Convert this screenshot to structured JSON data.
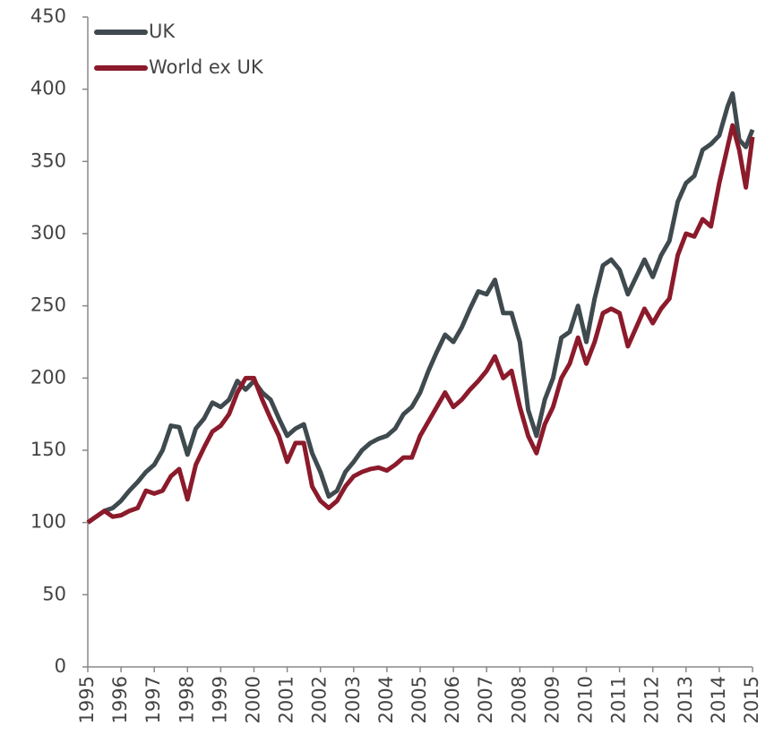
{
  "chart_data": {
    "type": "line",
    "x": [
      1995,
      1995.25,
      1995.5,
      1995.75,
      1996,
      1996.25,
      1996.5,
      1996.75,
      1997,
      1997.25,
      1997.5,
      1997.75,
      1998,
      1998.25,
      1998.5,
      1998.75,
      1999,
      1999.25,
      1999.5,
      1999.75,
      2000,
      2000.25,
      2000.5,
      2000.75,
      2001,
      2001.25,
      2001.5,
      2001.75,
      2002,
      2002.25,
      2002.5,
      2002.75,
      2003,
      2003.25,
      2003.5,
      2003.75,
      2004,
      2004.25,
      2004.5,
      2004.75,
      2005,
      2005.25,
      2005.5,
      2005.75,
      2006,
      2006.25,
      2006.5,
      2006.75,
      2007,
      2007.25,
      2007.5,
      2007.75,
      2008,
      2008.25,
      2008.5,
      2008.75,
      2009,
      2009.25,
      2009.5,
      2009.75,
      2010,
      2010.25,
      2010.5,
      2010.75,
      2011,
      2011.25,
      2011.5,
      2011.75,
      2012,
      2012.25,
      2012.5,
      2012.75,
      2013,
      2013.25,
      2013.5,
      2013.75,
      2014,
      2014.25,
      2014.4,
      2014.6,
      2014.8,
      2015
    ],
    "series": [
      {
        "name": "UK",
        "color": "#3f4a4f",
        "values": [
          100,
          104,
          108,
          110,
          115,
          122,
          128,
          135,
          140,
          150,
          167,
          166,
          147,
          165,
          172,
          183,
          180,
          185,
          198,
          192,
          198,
          190,
          185,
          172,
          160,
          165,
          168,
          148,
          135,
          118,
          122,
          135,
          142,
          150,
          155,
          158,
          160,
          165,
          175,
          180,
          190,
          205,
          218,
          230,
          225,
          235,
          248,
          260,
          258,
          268,
          245,
          245,
          225,
          178,
          160,
          185,
          200,
          228,
          232,
          250,
          225,
          255,
          278,
          282,
          275,
          258,
          270,
          282,
          270,
          285,
          295,
          322,
          335,
          340,
          358,
          362,
          368,
          388,
          397,
          365,
          360,
          372
        ]
      },
      {
        "name": "World ex UK",
        "color": "#8b1a2b",
        "values": [
          100,
          104,
          108,
          104,
          105,
          108,
          110,
          122,
          120,
          122,
          132,
          137,
          116,
          140,
          152,
          163,
          167,
          175,
          190,
          200,
          200,
          185,
          172,
          160,
          142,
          155,
          155,
          125,
          115,
          110,
          115,
          125,
          132,
          135,
          137,
          138,
          136,
          140,
          145,
          145,
          160,
          170,
          180,
          190,
          180,
          185,
          192,
          198,
          205,
          215,
          200,
          205,
          180,
          160,
          148,
          168,
          180,
          200,
          210,
          228,
          210,
          225,
          245,
          248,
          245,
          222,
          235,
          248,
          238,
          248,
          255,
          285,
          300,
          298,
          310,
          305,
          335,
          360,
          375,
          358,
          332,
          367
        ]
      }
    ],
    "xlim": [
      1995,
      2015
    ],
    "xticks": [
      1995,
      1996,
      1997,
      1998,
      1999,
      2000,
      2001,
      2002,
      2003,
      2004,
      2005,
      2006,
      2007,
      2008,
      2009,
      2010,
      2011,
      2012,
      2013,
      2014,
      2015
    ],
    "ylim": [
      0,
      450
    ],
    "yticks": [
      0,
      50,
      100,
      150,
      200,
      250,
      300,
      350,
      400,
      450
    ]
  }
}
